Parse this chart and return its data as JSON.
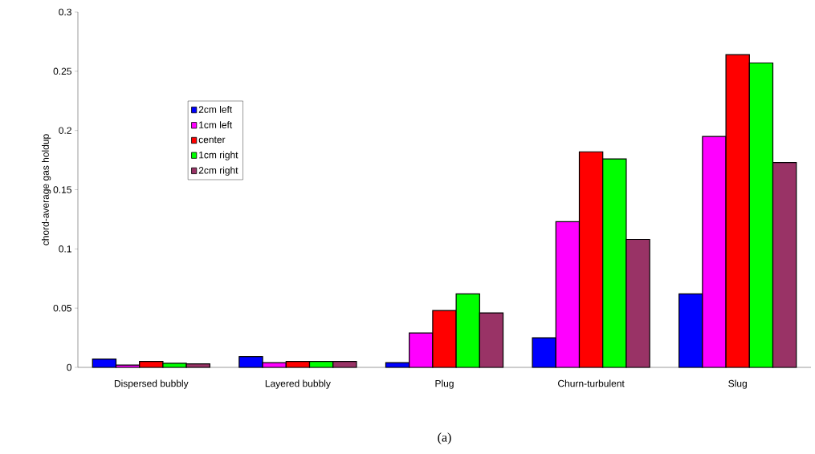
{
  "chart_data": {
    "type": "bar",
    "ylabel": "chord-average gas holdup",
    "categories": [
      "Dispersed bubbly",
      "Layered bubbly",
      "Plug",
      "Churn-turbulent",
      "Slug"
    ],
    "series": [
      {
        "name": "2cm left",
        "color": "#0000ff",
        "values": [
          0.007,
          0.009,
          0.004,
          0.025,
          0.062
        ]
      },
      {
        "name": "1cm left",
        "color": "#ff00ff",
        "values": [
          0.002,
          0.004,
          0.029,
          0.123,
          0.195
        ]
      },
      {
        "name": "center",
        "color": "#ff0000",
        "values": [
          0.005,
          0.005,
          0.048,
          0.182,
          0.264
        ]
      },
      {
        "name": "1cm right",
        "color": "#00ff00",
        "values": [
          0.0035,
          0.005,
          0.062,
          0.176,
          0.257
        ]
      },
      {
        "name": "2cm right",
        "color": "#993366",
        "values": [
          0.003,
          0.005,
          0.046,
          0.108,
          0.173
        ]
      }
    ],
    "ylim": [
      0,
      0.3
    ],
    "yticks": [
      0,
      0.05,
      0.1,
      0.15,
      0.2,
      0.25,
      0.3
    ],
    "legend": "left",
    "grid": false,
    "annotations": [
      "(a)"
    ]
  }
}
